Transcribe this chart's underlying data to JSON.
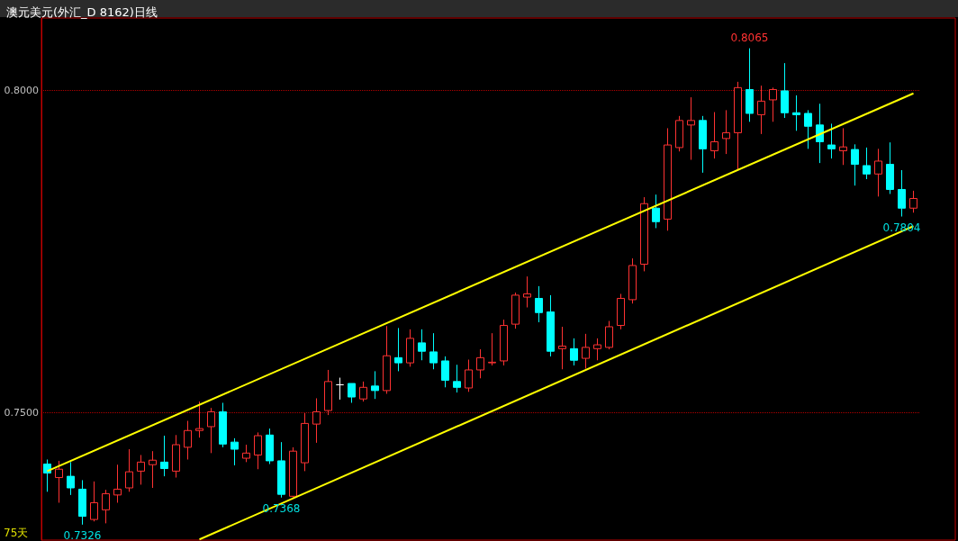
{
  "chart_data": {
    "type": "candlestick",
    "title": "澳元美元(外汇_D 8162)日线",
    "categories": [
      null,
      null,
      null,
      null,
      null,
      null,
      null,
      null,
      null,
      null,
      null,
      null,
      null,
      null,
      null,
      null,
      null,
      null,
      null,
      null,
      null,
      null,
      null,
      null,
      null,
      null,
      null,
      null,
      null,
      null,
      null,
      null,
      null,
      null,
      null,
      null,
      null,
      null,
      null,
      null,
      null,
      null,
      null,
      null,
      null,
      null,
      null,
      null,
      null,
      null,
      null,
      null,
      null,
      null,
      null,
      null,
      null,
      null,
      null,
      null,
      null,
      null,
      null,
      null,
      null,
      null,
      null,
      null,
      null,
      null,
      null,
      null,
      null,
      null,
      null
    ],
    "series": [
      {
        "type": "candlestick",
        "ohlc": [
          [
            0.742,
            0.7427,
            0.7377,
            0.7406
          ],
          [
            0.7399,
            0.7425,
            0.736,
            0.7412
          ],
          [
            0.7401,
            0.7423,
            0.7372,
            0.7383
          ],
          [
            0.7381,
            0.7395,
            0.7326,
            0.7339
          ],
          [
            0.7334,
            0.7393,
            0.7331,
            0.736
          ],
          [
            0.7349,
            0.738,
            0.7328,
            0.7374
          ],
          [
            0.7372,
            0.7419,
            0.736,
            0.7381
          ],
          [
            0.7383,
            0.7443,
            0.7377,
            0.7408
          ],
          [
            0.7409,
            0.7434,
            0.7388,
            0.7423
          ],
          [
            0.7419,
            0.744,
            0.7383,
            0.7426
          ],
          [
            0.7423,
            0.7464,
            0.7401,
            0.7413
          ],
          [
            0.7409,
            0.7465,
            0.7399,
            0.745
          ],
          [
            0.7446,
            0.7487,
            0.7427,
            0.7472
          ],
          [
            0.7472,
            0.7517,
            0.7461,
            0.7475
          ],
          [
            0.7478,
            0.7507,
            0.7437,
            0.7501
          ],
          [
            0.7501,
            0.7515,
            0.7446,
            0.7451
          ],
          [
            0.7454,
            0.746,
            0.7418,
            0.7443
          ],
          [
            0.7429,
            0.745,
            0.7423,
            0.7437
          ],
          [
            0.7434,
            0.7469,
            0.7412,
            0.7464
          ],
          [
            0.7465,
            0.7475,
            0.742,
            0.7425
          ],
          [
            0.7425,
            0.7454,
            0.7368,
            0.7373
          ],
          [
            0.737,
            0.7446,
            0.7368,
            0.744
          ],
          [
            0.7422,
            0.7499,
            0.7409,
            0.7483
          ],
          [
            0.7482,
            0.7522,
            0.7453,
            0.7501
          ],
          [
            0.7503,
            0.7566,
            0.7496,
            0.7548
          ],
          [
            0.7543,
            0.7554,
            0.752,
            0.7543
          ],
          [
            0.7545,
            0.7545,
            0.7515,
            0.7524
          ],
          [
            0.7521,
            0.7548,
            0.7517,
            0.7539
          ],
          [
            0.7541,
            0.7564,
            0.7521,
            0.7534
          ],
          [
            0.7534,
            0.7634,
            0.7529,
            0.7588
          ],
          [
            0.7585,
            0.7631,
            0.7564,
            0.7577
          ],
          [
            0.7577,
            0.7629,
            0.7571,
            0.7615
          ],
          [
            0.7608,
            0.7629,
            0.7581,
            0.7595
          ],
          [
            0.7594,
            0.7623,
            0.7567,
            0.7577
          ],
          [
            0.758,
            0.7587,
            0.7539,
            0.755
          ],
          [
            0.7548,
            0.7574,
            0.7531,
            0.7539
          ],
          [
            0.7538,
            0.7582,
            0.7532,
            0.7566
          ],
          [
            0.7566,
            0.7598,
            0.7553,
            0.7585
          ],
          [
            0.7577,
            0.7623,
            0.7573,
            0.7578
          ],
          [
            0.758,
            0.7644,
            0.7573,
            0.7635
          ],
          [
            0.7637,
            0.7686,
            0.763,
            0.7682
          ],
          [
            0.7679,
            0.7711,
            0.7663,
            0.7684
          ],
          [
            0.7677,
            0.7696,
            0.764,
            0.7655
          ],
          [
            0.7656,
            0.7682,
            0.7587,
            0.7595
          ],
          [
            0.7599,
            0.7633,
            0.7567,
            0.7603
          ],
          [
            0.7599,
            0.7615,
            0.7573,
            0.7581
          ],
          [
            0.7584,
            0.7622,
            0.7568,
            0.7601
          ],
          [
            0.7599,
            0.7615,
            0.7581,
            0.7605
          ],
          [
            0.7601,
            0.7642,
            0.7598,
            0.7633
          ],
          [
            0.7635,
            0.7684,
            0.7629,
            0.7677
          ],
          [
            0.7675,
            0.7739,
            0.7669,
            0.7728
          ],
          [
            0.773,
            0.7834,
            0.7719,
            0.7824
          ],
          [
            0.7817,
            0.7838,
            0.7786,
            0.7796
          ],
          [
            0.78,
            0.7941,
            0.7782,
            0.7915
          ],
          [
            0.7911,
            0.796,
            0.7905,
            0.7953
          ],
          [
            0.7946,
            0.7989,
            0.7892,
            0.7953
          ],
          [
            0.7953,
            0.796,
            0.7872,
            0.7909
          ],
          [
            0.7906,
            0.7966,
            0.7894,
            0.792
          ],
          [
            0.7925,
            0.7969,
            0.7901,
            0.7934
          ],
          [
            0.7934,
            0.8013,
            0.7877,
            0.8004
          ],
          [
            0.8001,
            0.8065,
            0.7951,
            0.7964
          ],
          [
            0.7962,
            0.8007,
            0.7932,
            0.7983
          ],
          [
            0.7985,
            0.8004,
            0.7951,
            0.8001
          ],
          [
            0.7999,
            0.8042,
            0.7957,
            0.7965
          ],
          [
            0.7965,
            0.7992,
            0.7937,
            0.7962
          ],
          [
            0.7964,
            0.7969,
            0.7909,
            0.7944
          ],
          [
            0.7946,
            0.7979,
            0.7887,
            0.792
          ],
          [
            0.7915,
            0.7948,
            0.7894,
            0.7909
          ],
          [
            0.7906,
            0.7941,
            0.7884,
            0.7912
          ],
          [
            0.7908,
            0.7916,
            0.7852,
            0.7885
          ],
          [
            0.7883,
            0.7911,
            0.7862,
            0.787
          ],
          [
            0.787,
            0.7909,
            0.7835,
            0.789
          ],
          [
            0.7885,
            0.7919,
            0.7839,
            0.7846
          ],
          [
            0.7846,
            0.7876,
            0.7804,
            0.7817
          ],
          [
            0.7817,
            0.7844,
            0.781,
            0.7832
          ]
        ],
        "colors": [
          "#00ffff",
          "#ff3232",
          "#00ffff",
          "#00ffff",
          "#ff3232",
          "#ff3232",
          "#ff3232",
          "#ff3232",
          "#ff3232",
          "#ff3232",
          "#00ffff",
          "#ff3232",
          "#ff3232",
          "#ff3232",
          "#ff3232",
          "#00ffff",
          "#00ffff",
          "#ff3232",
          "#ff3232",
          "#00ffff",
          "#00ffff",
          "#ff3232",
          "#ff3232",
          "#ff3232",
          "#ff3232",
          "#ffffff",
          "#00ffff",
          "#ff3232",
          "#00ffff",
          "#ff3232",
          "#00ffff",
          "#ff3232",
          "#00ffff",
          "#00ffff",
          "#00ffff",
          "#00ffff",
          "#ff3232",
          "#ff3232",
          "#ff3232",
          "#ff3232",
          "#ff3232",
          "#ff3232",
          "#00ffff",
          "#00ffff",
          "#ff3232",
          "#00ffff",
          "#ff3232",
          "#ff3232",
          "#ff3232",
          "#ff3232",
          "#ff3232",
          "#ff3232",
          "#00ffff",
          "#ff3232",
          "#ff3232",
          "#ff3232",
          "#00ffff",
          "#ff3232",
          "#ff3232",
          "#ff3232",
          "#00ffff",
          "#ff3232",
          "#ff3232",
          "#00ffff",
          "#00ffff",
          "#00ffff",
          "#00ffff",
          "#00ffff",
          "#ff3232",
          "#00ffff",
          "#00ffff",
          "#ff3232",
          "#00ffff",
          "#00ffff",
          "#ff3232"
        ]
      },
      {
        "type": "line",
        "color": "#ffff00",
        "values": [
          0.7409,
          null,
          null,
          null,
          null,
          null,
          null,
          null,
          null,
          null,
          null,
          null,
          null,
          null,
          null,
          null,
          null,
          null,
          null,
          null,
          null,
          null,
          null,
          null,
          null,
          null,
          null,
          null,
          null,
          null,
          null,
          null,
          null,
          null,
          null,
          null,
          null,
          null,
          null,
          null,
          null,
          null,
          null,
          null,
          null,
          null,
          null,
          null,
          null,
          null,
          null,
          null,
          null,
          null,
          null,
          null,
          null,
          null,
          null,
          null,
          null,
          null,
          null,
          null,
          null,
          null,
          null,
          null,
          null,
          null,
          null,
          null,
          null,
          null,
          0.7995
        ]
      },
      {
        "type": "line",
        "color": "#ffff00",
        "values": [
          null,
          null,
          null,
          null,
          null,
          null,
          null,
          null,
          null,
          null,
          null,
          null,
          null,
          0.7303,
          null,
          null,
          null,
          null,
          null,
          null,
          null,
          null,
          null,
          null,
          null,
          null,
          null,
          null,
          null,
          null,
          null,
          null,
          null,
          null,
          null,
          null,
          null,
          null,
          null,
          null,
          null,
          null,
          null,
          null,
          null,
          null,
          null,
          null,
          null,
          null,
          null,
          null,
          null,
          null,
          null,
          null,
          null,
          null,
          null,
          null,
          null,
          null,
          null,
          null,
          null,
          null,
          null,
          null,
          null,
          null,
          null,
          null,
          null,
          null,
          0.7789
        ]
      }
    ],
    "ylim": [
      0.7302,
      0.8112
    ],
    "yticks": [
      {
        "value": 0.75,
        "label": "0.7500"
      },
      {
        "value": 0.8,
        "label": "0.8000"
      }
    ],
    "grid": "y",
    "tick_labels": "y",
    "annotations": [
      {
        "text": "0.8065",
        "y": 0.8065
      },
      {
        "text": "0.7368",
        "y": 0.7368
      },
      {
        "text": "0.7804",
        "y": 0.7804
      },
      {
        "text": "0.7326",
        "y": 0.7326
      },
      "75天"
    ]
  }
}
